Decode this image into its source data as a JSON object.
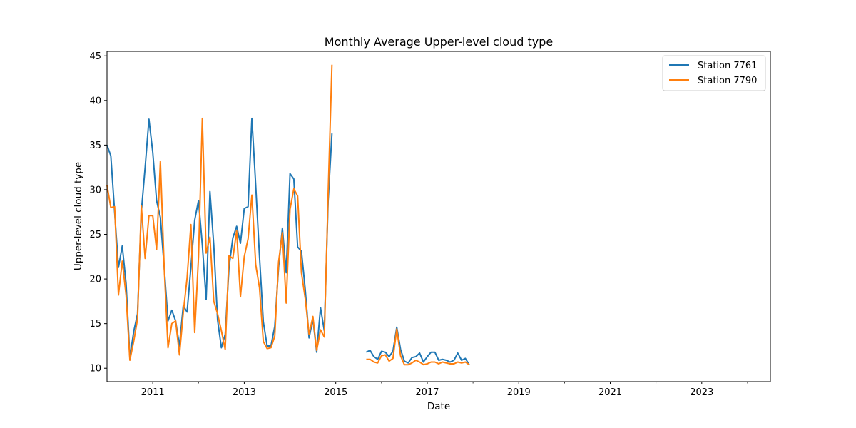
{
  "chart_data": {
    "type": "line",
    "title": "Monthly Average Upper-level cloud type",
    "xlabel": "Date",
    "ylabel": "Upper-level cloud type",
    "xlim": [
      "2010-01",
      "2024-07"
    ],
    "ylim": [
      8.5,
      45.5
    ],
    "x_ticks": [
      "2011",
      "2013",
      "2015",
      "2017",
      "2019",
      "2021",
      "2023"
    ],
    "y_ticks": [
      10,
      15,
      20,
      25,
      30,
      35,
      40,
      45
    ],
    "grid": false,
    "legend_position": "top-right",
    "x": [
      "2010-01",
      "2010-02",
      "2010-03",
      "2010-04",
      "2010-05",
      "2010-06",
      "2010-07",
      "2010-08",
      "2010-09",
      "2010-10",
      "2010-11",
      "2010-12",
      "2011-01",
      "2011-02",
      "2011-03",
      "2011-04",
      "2011-05",
      "2011-06",
      "2011-07",
      "2011-08",
      "2011-09",
      "2011-10",
      "2011-11",
      "2011-12",
      "2012-01",
      "2012-02",
      "2012-03",
      "2012-04",
      "2012-05",
      "2012-06",
      "2012-07",
      "2012-08",
      "2012-09",
      "2012-10",
      "2012-11",
      "2012-12",
      "2013-01",
      "2013-02",
      "2013-03",
      "2013-04",
      "2013-05",
      "2013-06",
      "2013-07",
      "2013-08",
      "2013-09",
      "2013-10",
      "2013-11",
      "2013-12",
      "2014-01",
      "2014-02",
      "2014-03",
      "2014-04",
      "2014-05",
      "2014-06",
      "2014-07",
      "2014-08",
      "2014-09",
      "2014-10",
      "2014-11",
      "2014-12",
      "2015-01",
      "2015-02",
      "2015-03",
      "2015-04",
      "2015-05",
      "2015-06",
      "2015-07",
      "2015-08",
      "2015-09",
      "2015-10",
      "2015-11",
      "2015-12",
      "2016-01",
      "2016-02",
      "2016-03",
      "2016-04",
      "2016-05",
      "2016-06",
      "2016-07",
      "2016-08",
      "2016-09",
      "2016-10",
      "2016-11",
      "2016-12",
      "2017-01",
      "2017-02",
      "2017-03",
      "2017-04",
      "2017-05",
      "2017-06",
      "2017-07",
      "2017-08",
      "2017-09",
      "2017-10",
      "2017-11",
      "2017-12"
    ],
    "series": [
      {
        "name": "Station 7761",
        "color": "#1f77b4",
        "values": [
          35.0,
          33.8,
          27.5,
          21.3,
          23.7,
          19.5,
          11.2,
          14.1,
          16.1,
          27.5,
          32.5,
          37.9,
          34.2,
          28.8,
          26.9,
          21.3,
          15.3,
          16.5,
          15.3,
          12.5,
          17.0,
          16.3,
          21.3,
          26.6,
          28.8,
          23.8,
          17.7,
          29.8,
          23.8,
          15.4,
          12.3,
          13.8,
          21.3,
          24.6,
          25.9,
          24.0,
          27.9,
          28.1,
          38.0,
          30.5,
          22.5,
          15.2,
          12.5,
          12.5,
          14.7,
          21.3,
          25.7,
          20.7,
          31.8,
          31.2,
          23.6,
          23.1,
          18.8,
          13.4,
          15.5,
          11.8,
          16.8,
          14.2,
          28.7,
          36.3,
          null,
          null,
          null,
          null,
          null,
          null,
          null,
          null,
          11.8,
          12.0,
          11.3,
          11.0,
          11.9,
          11.8,
          11.3,
          11.9,
          14.6,
          12.1,
          10.8,
          10.6,
          11.2,
          11.3,
          11.7,
          10.7,
          11.3,
          11.8,
          11.8,
          10.9,
          11.0,
          10.9,
          10.7,
          10.9,
          11.7,
          10.9,
          11.1,
          10.4
        ]
      },
      {
        "name": "Station 7790",
        "color": "#ff7f0e",
        "values": [
          30.5,
          28.0,
          28.1,
          18.2,
          22.0,
          18.2,
          10.9,
          13.0,
          15.5,
          28.2,
          22.3,
          27.1,
          27.1,
          23.3,
          33.2,
          21.3,
          12.3,
          15.0,
          15.3,
          11.5,
          16.2,
          20.1,
          26.1,
          14.0,
          22.5,
          38.0,
          22.9,
          24.7,
          17.5,
          16.1,
          14.2,
          12.1,
          22.6,
          22.3,
          25.4,
          18.0,
          22.5,
          24.5,
          29.4,
          21.6,
          19.0,
          13.0,
          12.2,
          12.3,
          13.6,
          21.9,
          25.2,
          17.3,
          27.8,
          30.1,
          29.3,
          20.7,
          17.8,
          13.8,
          15.8,
          12.0,
          14.3,
          13.5,
          29.5,
          44.0,
          null,
          null,
          null,
          null,
          null,
          null,
          null,
          null,
          11.0,
          11.0,
          10.7,
          10.6,
          11.4,
          11.5,
          10.8,
          11.1,
          14.4,
          11.4,
          10.4,
          10.4,
          10.6,
          10.9,
          10.7,
          10.4,
          10.5,
          10.7,
          10.7,
          10.5,
          10.7,
          10.6,
          10.5,
          10.5,
          10.7,
          10.6,
          10.7,
          10.4
        ]
      }
    ]
  }
}
